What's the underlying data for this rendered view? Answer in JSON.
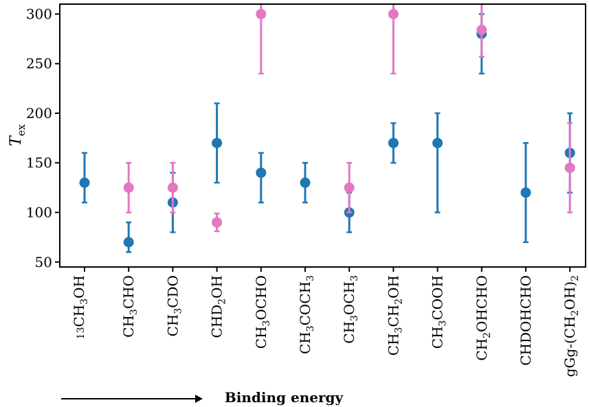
{
  "chart_data": {
    "type": "scatter",
    "ylabel_main": "T",
    "ylabel_sub": "ex",
    "xlabel": "Binding energy",
    "ylim": [
      45,
      310
    ],
    "yticks": [
      50,
      100,
      150,
      200,
      250,
      300
    ],
    "categories": [
      {
        "base": "",
        "sup": "13",
        "parts": [
          [
            "CH",
            ""
          ],
          [
            "3",
            "sub"
          ],
          [
            "OH",
            ""
          ]
        ]
      },
      {
        "parts": [
          [
            "CH",
            ""
          ],
          [
            "3",
            "sub"
          ],
          [
            "CHO",
            ""
          ]
        ]
      },
      {
        "parts": [
          [
            "CH",
            ""
          ],
          [
            "3",
            "sub"
          ],
          [
            "CDO",
            ""
          ]
        ]
      },
      {
        "parts": [
          [
            "CHD",
            ""
          ],
          [
            "2",
            "sub"
          ],
          [
            "OH",
            ""
          ]
        ]
      },
      {
        "parts": [
          [
            "CH",
            ""
          ],
          [
            "3",
            "sub"
          ],
          [
            "OCHO",
            ""
          ]
        ]
      },
      {
        "parts": [
          [
            "CH",
            ""
          ],
          [
            "3",
            "sub"
          ],
          [
            "COCH",
            ""
          ],
          [
            "3",
            "sub"
          ]
        ]
      },
      {
        "parts": [
          [
            "CH",
            ""
          ],
          [
            "3",
            "sub"
          ],
          [
            "OCH",
            ""
          ],
          [
            "3",
            "sub"
          ]
        ]
      },
      {
        "parts": [
          [
            "CH",
            ""
          ],
          [
            "3",
            "sub"
          ],
          [
            "CH",
            ""
          ],
          [
            "2",
            "sub"
          ],
          [
            "OH",
            ""
          ]
        ]
      },
      {
        "parts": [
          [
            "CH",
            ""
          ],
          [
            "3",
            "sub"
          ],
          [
            "COOH",
            ""
          ]
        ]
      },
      {
        "parts": [
          [
            "CH",
            ""
          ],
          [
            "2",
            "sub"
          ],
          [
            "OHCHO",
            ""
          ]
        ]
      },
      {
        "parts": [
          [
            "CHDOHCHO",
            ""
          ]
        ]
      },
      {
        "parts": [
          [
            "gGg-(CH",
            ""
          ],
          [
            "2",
            "sub"
          ],
          [
            "OH)",
            ""
          ],
          [
            "2",
            "sub"
          ]
        ]
      }
    ],
    "series": [
      {
        "color": "#1f77b4",
        "points": [
          {
            "i": 0,
            "y": 130,
            "low": 110,
            "high": 160
          },
          {
            "i": 1,
            "y": 70,
            "low": 60,
            "high": 90
          },
          {
            "i": 2,
            "y": 110,
            "low": 80,
            "high": 140
          },
          {
            "i": 3,
            "y": 170,
            "low": 130,
            "high": 210
          },
          {
            "i": 4,
            "y": 140,
            "low": 110,
            "high": 160
          },
          {
            "i": 5,
            "y": 130,
            "low": 110,
            "high": 150
          },
          {
            "i": 6,
            "y": 100,
            "low": 80,
            "high": 120
          },
          {
            "i": 7,
            "y": 170,
            "low": 150,
            "high": 190
          },
          {
            "i": 8,
            "y": 170,
            "low": 100,
            "high": 200
          },
          {
            "i": 9,
            "y": 280,
            "low": 240,
            "high": 300
          },
          {
            "i": 10,
            "y": 120,
            "low": 70,
            "high": 170
          },
          {
            "i": 11,
            "y": 160,
            "low": 120,
            "high": 200
          }
        ]
      },
      {
        "color": "#e377c2",
        "points": [
          {
            "i": 1,
            "y": 125,
            "low": 100,
            "high": 150
          },
          {
            "i": 2,
            "y": 125,
            "low": 100,
            "high": 150
          },
          {
            "i": 3,
            "y": 90,
            "low": 81,
            "high": 99
          },
          {
            "i": 4,
            "y": 300,
            "low": 240,
            "high": 310
          },
          {
            "i": 6,
            "y": 125,
            "low": 100,
            "high": 150
          },
          {
            "i": 7,
            "y": 300,
            "low": 240,
            "high": 310
          },
          {
            "i": 9,
            "y": 284,
            "low": 257,
            "high": 310
          },
          {
            "i": 11,
            "y": 145,
            "low": 100,
            "high": 190
          }
        ]
      }
    ]
  }
}
